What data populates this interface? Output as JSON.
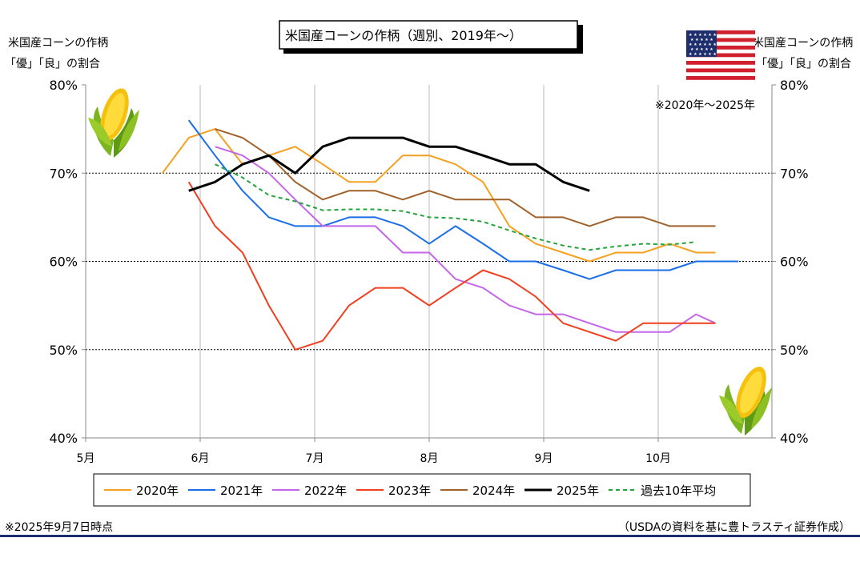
{
  "chart_data": {
    "type": "line",
    "title": "米国産コーンの作柄（週別、2019年～）",
    "y_label_left": [
      "米国産コーンの作柄",
      "「優」「良」の割合"
    ],
    "y_label_right": [
      "米国産コーンの作柄",
      "「優」「良」の割合"
    ],
    "note_range": "※2020年～2025年",
    "footnote_left": "※2025年9月7日時点",
    "footnote_right": "（USDAの資料を基に豊トラスティ証券作成）",
    "ylim": [
      40,
      80
    ],
    "y_ticks": [
      40,
      50,
      60,
      70,
      80
    ],
    "y_tick_labels": [
      "40%",
      "50%",
      "60%",
      "70%",
      "80%"
    ],
    "x_ticks": [
      5,
      6,
      7,
      8,
      9,
      10
    ],
    "x_tick_labels": [
      "5月",
      "6月",
      "7月",
      "8月",
      "9月",
      "10月"
    ],
    "xlim": [
      5,
      11
    ],
    "grid": "horizontal dotted at 50%, 60%, 70%; vertical gray at month boundaries",
    "legend_position": "bottom",
    "series": [
      {
        "name": "2020年",
        "color": "#f5a020",
        "dash": false,
        "width": 2,
        "x": [
          5.67,
          5.9,
          6.13,
          6.37,
          6.6,
          6.83,
          7.07,
          7.3,
          7.53,
          7.77,
          8.0,
          8.23,
          8.47,
          8.7,
          8.93,
          9.17,
          9.4,
          9.63,
          9.87,
          10.1,
          10.33,
          10.5
        ],
        "y": [
          70,
          74,
          75,
          71,
          72,
          73,
          71,
          69,
          69,
          72,
          72,
          71,
          69,
          64,
          62,
          61,
          60,
          61,
          61,
          62,
          61,
          61
        ]
      },
      {
        "name": "2021年",
        "color": "#1a6ee8",
        "dash": false,
        "width": 2,
        "x": [
          5.9,
          6.13,
          6.37,
          6.6,
          6.83,
          7.07,
          7.3,
          7.53,
          7.77,
          8.0,
          8.23,
          8.47,
          8.7,
          8.93,
          9.17,
          9.4,
          9.63,
          9.87,
          10.1,
          10.33,
          10.7
        ],
        "y": [
          76,
          72,
          68,
          65,
          64,
          64,
          65,
          65,
          64,
          62,
          64,
          62,
          60,
          60,
          59,
          58,
          59,
          59,
          59,
          60,
          60
        ]
      },
      {
        "name": "2022年",
        "color": "#c566ea",
        "dash": false,
        "width": 2,
        "x": [
          6.13,
          6.37,
          6.6,
          6.83,
          7.07,
          7.3,
          7.53,
          7.77,
          8.0,
          8.23,
          8.47,
          8.7,
          8.93,
          9.17,
          9.4,
          9.63,
          9.87,
          10.1,
          10.33,
          10.5
        ],
        "y": [
          73,
          72,
          70,
          67,
          64,
          64,
          64,
          61,
          61,
          58,
          57,
          55,
          54,
          54,
          53,
          52,
          52,
          52,
          54,
          53
        ]
      },
      {
        "name": "2023年",
        "color": "#f04020",
        "dash": false,
        "width": 2,
        "x": [
          5.9,
          6.13,
          6.37,
          6.6,
          6.83,
          7.07,
          7.3,
          7.53,
          7.77,
          8.0,
          8.23,
          8.47,
          8.7,
          8.93,
          9.17,
          9.4,
          9.63,
          9.87,
          10.1,
          10.33,
          10.5
        ],
        "y": [
          69,
          64,
          61,
          55,
          50,
          51,
          55,
          57,
          57,
          55,
          57,
          59,
          58,
          56,
          53,
          52,
          51,
          53,
          53,
          53,
          53
        ]
      },
      {
        "name": "2024年",
        "color": "#a0612a",
        "dash": false,
        "width": 2,
        "x": [
          6.13,
          6.37,
          6.6,
          6.83,
          7.07,
          7.3,
          7.53,
          7.77,
          8.0,
          8.23,
          8.47,
          8.7,
          8.93,
          9.17,
          9.4,
          9.63,
          9.87,
          10.1,
          10.33,
          10.5
        ],
        "y": [
          75,
          74,
          72,
          69,
          67,
          68,
          68,
          67,
          68,
          67,
          67,
          67,
          65,
          65,
          64,
          65,
          65,
          64,
          64,
          64
        ]
      },
      {
        "name": "2025年",
        "color": "#000000",
        "dash": false,
        "width": 3,
        "x": [
          5.9,
          6.13,
          6.37,
          6.6,
          6.83,
          7.07,
          7.3,
          7.53,
          7.77,
          8.0,
          8.23,
          8.47,
          8.7,
          8.93,
          9.17,
          9.4
        ],
        "y": [
          68,
          69,
          71,
          72,
          70,
          73,
          74,
          74,
          74,
          73,
          73,
          72,
          71,
          71,
          69,
          68
        ]
      },
      {
        "name": "過去10年平均",
        "color": "#23a33a",
        "dash": true,
        "width": 2,
        "x": [
          6.13,
          6.37,
          6.6,
          6.83,
          7.07,
          7.3,
          7.53,
          7.77,
          8.0,
          8.23,
          8.47,
          8.7,
          8.93,
          9.17,
          9.4,
          9.63,
          9.87,
          10.1,
          10.33
        ],
        "y": [
          71,
          69.5,
          67.5,
          66.8,
          65.8,
          65.9,
          65.9,
          65.7,
          65,
          64.9,
          64.5,
          63.5,
          62.6,
          61.8,
          61.3,
          61.7,
          62,
          61.9,
          62.2
        ]
      }
    ]
  }
}
